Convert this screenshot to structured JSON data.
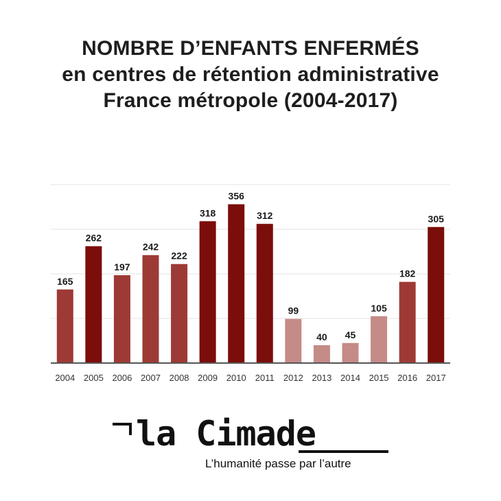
{
  "title": {
    "line1": "NOMBRE D’ENFANTS ENFERMÉS",
    "line2": "en centres de rétention administrative",
    "line3": "France métropole (2004-2017)"
  },
  "chart_data": {
    "type": "bar",
    "categories": [
      "2004",
      "2005",
      "2006",
      "2007",
      "2008",
      "2009",
      "2010",
      "2011",
      "2012",
      "2013",
      "2014",
      "2015",
      "2016",
      "2017"
    ],
    "values": [
      165,
      262,
      197,
      242,
      222,
      318,
      356,
      312,
      99,
      40,
      45,
      105,
      182,
      305
    ],
    "title": "NOMBRE D’ENFANTS ENFERMÉS en centres de rétention administrative France métropole (2004-2017)",
    "xlabel": "",
    "ylabel": "",
    "ylim": [
      0,
      400
    ],
    "grid": true,
    "bar_colors": [
      "#9e3a36",
      "#7b0d0a",
      "#9e3a36",
      "#9e3a36",
      "#9e3a36",
      "#7b0d0a",
      "#7b0d0a",
      "#7b0d0a",
      "#c48b87",
      "#c48b87",
      "#c48b87",
      "#c48b87",
      "#9e3a36",
      "#7b0d0a"
    ]
  },
  "colors": {
    "axis": "#555555",
    "grid": "#e3e3e3",
    "label": "#1a1a1a"
  },
  "logo": {
    "brand": "la Cimade",
    "tagline": "L’humanité passe par l’autre"
  }
}
